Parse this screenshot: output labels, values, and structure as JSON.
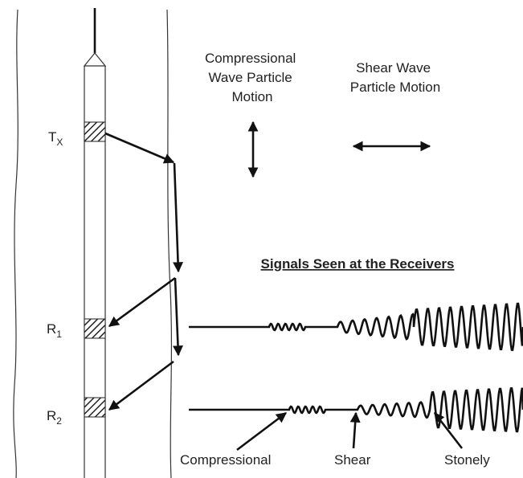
{
  "motion_labels": {
    "compressional": [
      "Compressional",
      "Wave Particle",
      "Motion"
    ],
    "shear": [
      "Shear Wave",
      "Particle Motion"
    ]
  },
  "tool": {
    "transmitter": {
      "letter": "T",
      "subscript": "X"
    },
    "receivers": [
      {
        "letter": "R",
        "subscript": "1"
      },
      {
        "letter": "R",
        "subscript": "2"
      }
    ]
  },
  "signals_title": "Signals Seen at the Receivers",
  "wave_labels": [
    "Compressional",
    "Shear",
    "Stonely"
  ]
}
